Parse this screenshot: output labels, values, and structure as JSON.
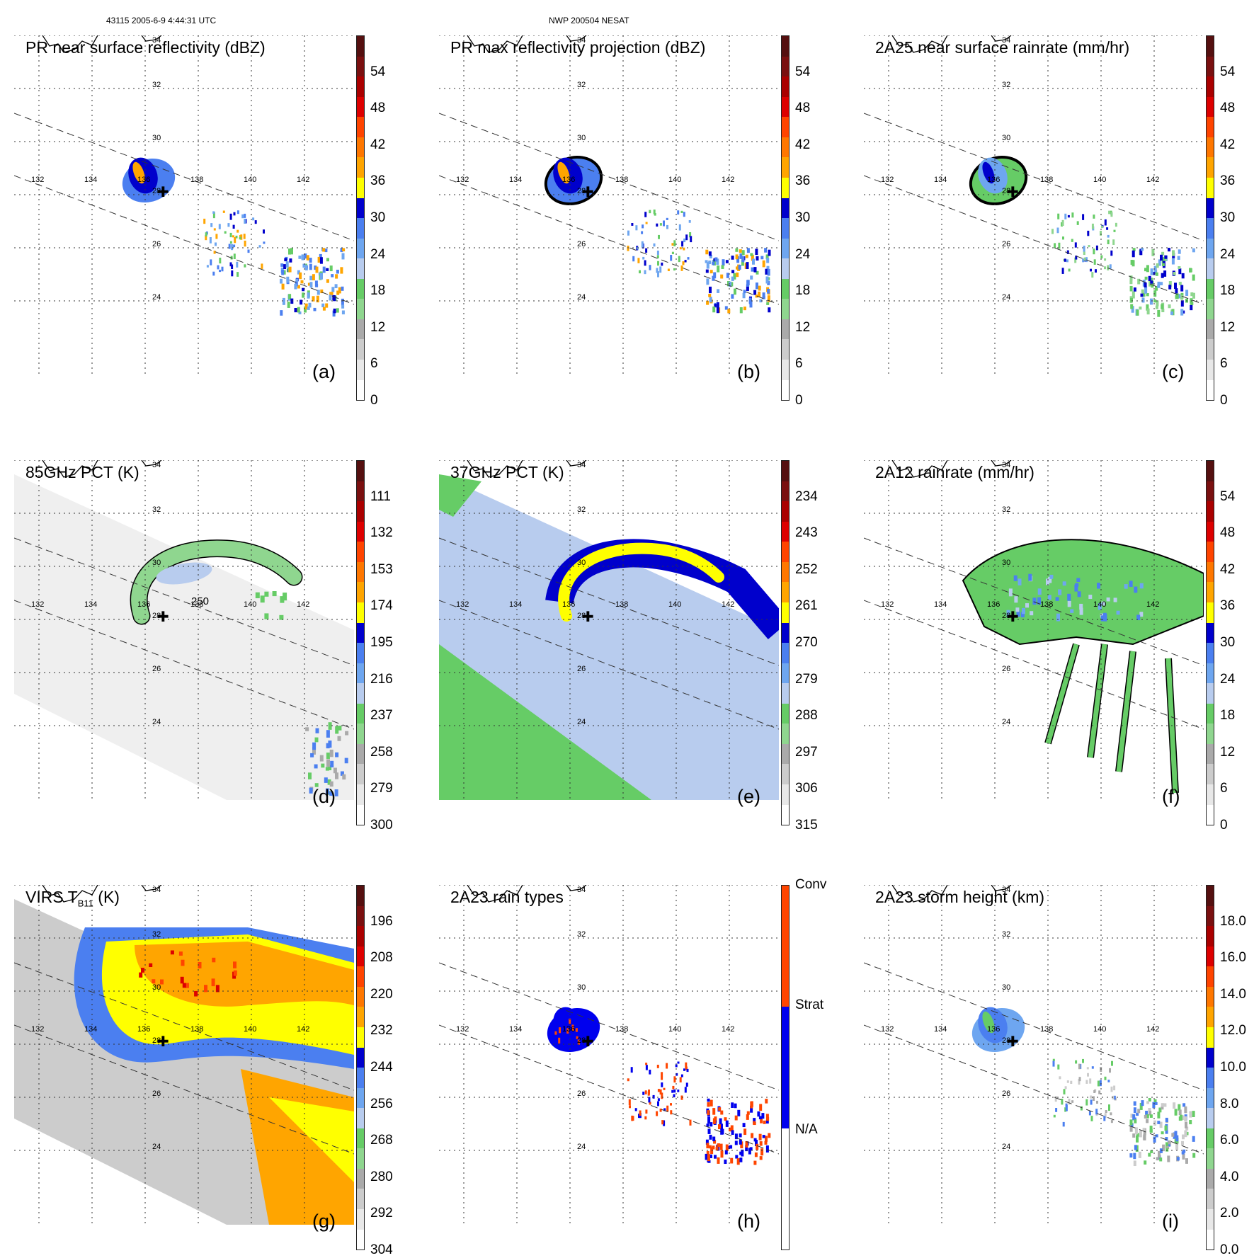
{
  "header": {
    "orbit_line": "43115 2005-6-9 4:44:31 UTC",
    "storm_line": "NWP 200504 NESAT"
  },
  "map_labels": {
    "latitudes": [
      "34",
      "32",
      "30",
      "28",
      "26",
      "24"
    ],
    "longitudes": [
      "132",
      "134",
      "136",
      "138",
      "140",
      "142"
    ]
  },
  "contour_label": "250",
  "colors": {
    "dbz": [
      "#ffffff",
      "#e8e8e8",
      "#cccccc",
      "#aaaaaa",
      "#8fd68f",
      "#66cc66",
      "#b8ccee",
      "#6ea6f0",
      "#4b7ff0",
      "#0000cc",
      "#ffff00",
      "#ffa500",
      "#ff7700",
      "#ff4400",
      "#dd0000",
      "#aa0000",
      "#7a1010",
      "#551010"
    ],
    "strat": "#0000ee",
    "conv": "#ff4500"
  },
  "panels": [
    {
      "id": "a",
      "title": "PR near surface reflectivity (dBZ)",
      "label": "(a)",
      "scale": "dbz",
      "ticks": [
        "0",
        "6",
        "12",
        "18",
        "24",
        "30",
        "36",
        "42",
        "48",
        "54"
      ]
    },
    {
      "id": "b",
      "title": "PR max reflectivity projection (dBZ)",
      "label": "(b)",
      "scale": "dbz",
      "ticks": [
        "0",
        "6",
        "12",
        "18",
        "24",
        "30",
        "36",
        "42",
        "48",
        "54"
      ]
    },
    {
      "id": "c",
      "title": "2A25 near surface rainrate (mm/hr)",
      "label": "(c)",
      "scale": "rain",
      "ticks": [
        "0",
        "6",
        "12",
        "18",
        "24",
        "30",
        "36",
        "42",
        "48",
        "54"
      ]
    },
    {
      "id": "d",
      "title": "85GHz PCT (K)",
      "label": "(d)",
      "scale": "temp",
      "ticks": [
        "300",
        "279",
        "258",
        "237",
        "216",
        "195",
        "174",
        "153",
        "132",
        "111"
      ]
    },
    {
      "id": "e",
      "title": "37GHz PCT (K)",
      "label": "(e)",
      "scale": "temp",
      "ticks": [
        "315",
        "306",
        "297",
        "288",
        "279",
        "270",
        "261",
        "252",
        "243",
        "234"
      ]
    },
    {
      "id": "f",
      "title": "2A12 rainrate (mm/hr)",
      "label": "(f)",
      "scale": "rain",
      "ticks": [
        "0",
        "6",
        "12",
        "18",
        "24",
        "30",
        "36",
        "42",
        "48",
        "54"
      ]
    },
    {
      "id": "g",
      "title": "VIRS T",
      "title_sub": "B11",
      "title_end": " (K)",
      "label": "(g)",
      "scale": "temp",
      "ticks": [
        "304",
        "292",
        "280",
        "268",
        "256",
        "244",
        "232",
        "220",
        "208",
        "196"
      ]
    },
    {
      "id": "h",
      "title": "2A23 rain types",
      "label": "(h)",
      "scale": "type",
      "ticks": [
        "N/A",
        "Strat",
        "Conv"
      ]
    },
    {
      "id": "i",
      "title": "2A23 storm height (km)",
      "label": "(i)",
      "scale": "height",
      "ticks": [
        "0.0",
        "2.0",
        "4.0",
        "6.0",
        "8.0",
        "10.0",
        "12.0",
        "14.0",
        "16.0",
        "18.0"
      ]
    }
  ]
}
